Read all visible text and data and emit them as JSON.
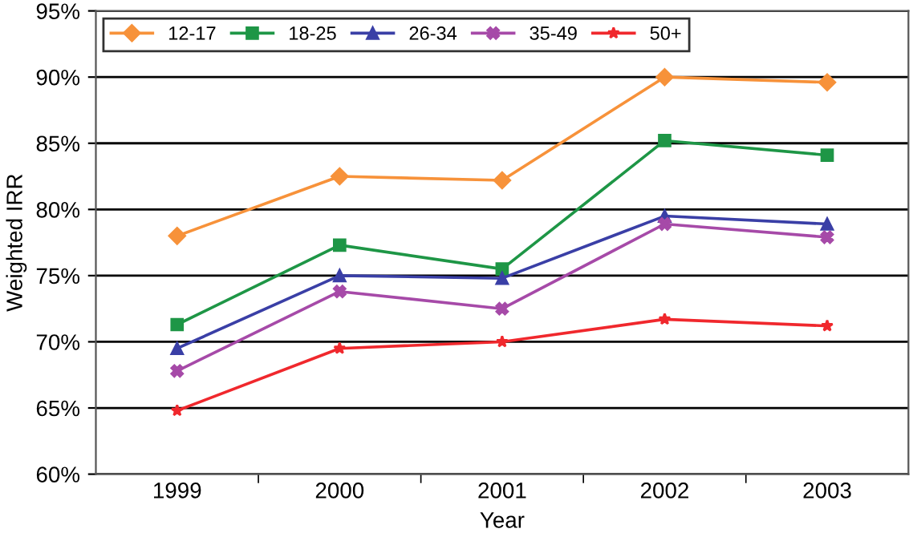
{
  "chart_data": {
    "type": "line",
    "xlabel": "Year",
    "ylabel": "Weighted IRR",
    "categories": [
      "1999",
      "2000",
      "2001",
      "2002",
      "2003"
    ],
    "series": [
      {
        "name": "12-17",
        "color": "#f7923a",
        "marker": "diamond",
        "values": [
          0.78,
          0.825,
          0.822,
          0.9,
          0.896
        ]
      },
      {
        "name": "18-25",
        "color": "#1e9646",
        "marker": "square",
        "values": [
          0.713,
          0.773,
          0.755,
          0.852,
          0.841
        ]
      },
      {
        "name": "26-34",
        "color": "#3a3fa6",
        "marker": "triangle",
        "values": [
          0.695,
          0.75,
          0.748,
          0.795,
          0.789
        ]
      },
      {
        "name": "35-49",
        "color": "#a64aa8",
        "marker": "cross",
        "values": [
          0.678,
          0.738,
          0.725,
          0.789,
          0.779
        ]
      },
      {
        "name": "50+",
        "color": "#f0282d",
        "marker": "star",
        "values": [
          0.648,
          0.695,
          0.7,
          0.717,
          0.712
        ]
      }
    ],
    "ylim": [
      0.6,
      0.95
    ],
    "yticks": [
      {
        "value": 0.6,
        "label": "60%"
      },
      {
        "value": 0.65,
        "label": "65%"
      },
      {
        "value": 0.7,
        "label": "70%"
      },
      {
        "value": 0.75,
        "label": "75%"
      },
      {
        "value": 0.8,
        "label": "80%"
      },
      {
        "value": 0.85,
        "label": "85%"
      },
      {
        "value": 0.9,
        "label": "90%"
      },
      {
        "value": 0.95,
        "label": "95%"
      }
    ],
    "grid": "y",
    "legend": "top",
    "line_style": "solid"
  }
}
